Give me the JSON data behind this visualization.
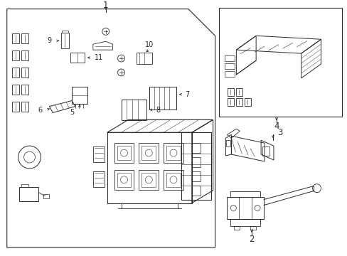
{
  "bg_color": "#ffffff",
  "line_color": "#2a2a2a",
  "lw": 0.75
}
